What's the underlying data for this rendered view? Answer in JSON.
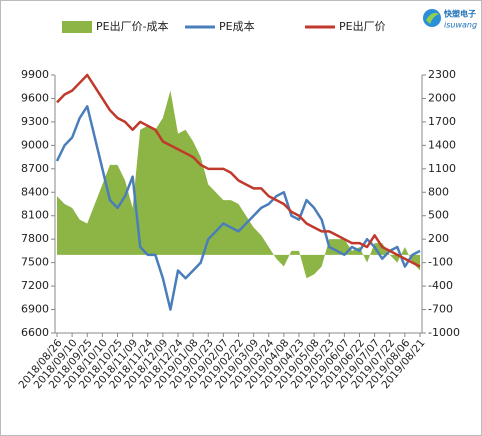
{
  "logo": {
    "name": "快塑电子",
    "site": "isuwang"
  },
  "chart_data": {
    "type": "line",
    "categories": [
      "2018/08/26",
      null,
      "2018/09/10",
      null,
      "2018/09/25",
      null,
      "2018/10/10",
      null,
      "2018/10/25",
      null,
      "2018/11/09",
      null,
      "2018/11/24",
      null,
      "2018/12/09",
      null,
      "2018/12/24",
      null,
      "2019/01/08",
      null,
      "2019/01/23",
      null,
      "2019/02/07",
      null,
      "2019/02/22",
      null,
      "2019/03/09",
      null,
      "2019/03/24",
      null,
      "2019/04/08",
      null,
      "2019/04/23",
      null,
      "2019/05/08",
      null,
      "2019/05/23",
      null,
      "2019/06/07",
      null,
      "2019/06/22",
      null,
      "2019/07/07",
      null,
      "2019/07/22",
      null,
      "2019/08/06",
      null,
      "2019/08/21"
    ],
    "series": [
      {
        "name": "PE出厂价-成本",
        "kind": "area",
        "axis": "y2",
        "color": "#8db545",
        "values": [
          750,
          650,
          600,
          450,
          400,
          650,
          900,
          1150,
          1150,
          950,
          600,
          1600,
          1650,
          1600,
          1750,
          2100,
          1550,
          1600,
          1450,
          1250,
          900,
          800,
          700,
          700,
          650,
          500,
          350,
          250,
          100,
          -50,
          -150,
          50,
          50,
          -300,
          -250,
          -150,
          200,
          200,
          200,
          50,
          100,
          -100,
          150,
          150,
          0,
          -100,
          100,
          -100,
          -200
        ]
      },
      {
        "name": "PE成本",
        "kind": "line",
        "color": "#4a7ebb",
        "values": [
          8800,
          9000,
          9100,
          9350,
          9500,
          9100,
          8700,
          8300,
          8200,
          8350,
          8600,
          7700,
          7600,
          7600,
          7300,
          6900,
          7400,
          7300,
          7400,
          7500,
          7800,
          7900,
          8000,
          7950,
          7900,
          8000,
          8100,
          8200,
          8250,
          8350,
          8400,
          8100,
          8050,
          8300,
          8200,
          8050,
          7700,
          7650,
          7600,
          7700,
          7650,
          7800,
          7700,
          7550,
          7650,
          7700,
          7450,
          7600,
          7650
        ]
      },
      {
        "name": "PE出厂价",
        "kind": "line",
        "color": "#c0392b",
        "values": [
          9550,
          9650,
          9700,
          9800,
          9900,
          9750,
          9600,
          9450,
          9350,
          9300,
          9200,
          9300,
          9250,
          9200,
          9050,
          9000,
          8950,
          8900,
          8850,
          8750,
          8700,
          8700,
          8700,
          8650,
          8550,
          8500,
          8450,
          8450,
          8350,
          8300,
          8250,
          8150,
          8100,
          8000,
          7950,
          7900,
          7900,
          7850,
          7800,
          7750,
          7750,
          7700,
          7850,
          7700,
          7650,
          7600,
          7550,
          7500,
          7450
        ]
      }
    ],
    "ylim": [
      6600,
      9900
    ],
    "yticks": [
      6600,
      6900,
      7200,
      7500,
      7800,
      8100,
      8400,
      8700,
      9000,
      9300,
      9600,
      9900
    ],
    "y2lim": [
      -1000,
      2300
    ],
    "y2ticks": [
      -1000,
      -700,
      -400,
      -100,
      200,
      500,
      800,
      1100,
      1400,
      1700,
      2000,
      2300
    ],
    "legend": "top"
  }
}
